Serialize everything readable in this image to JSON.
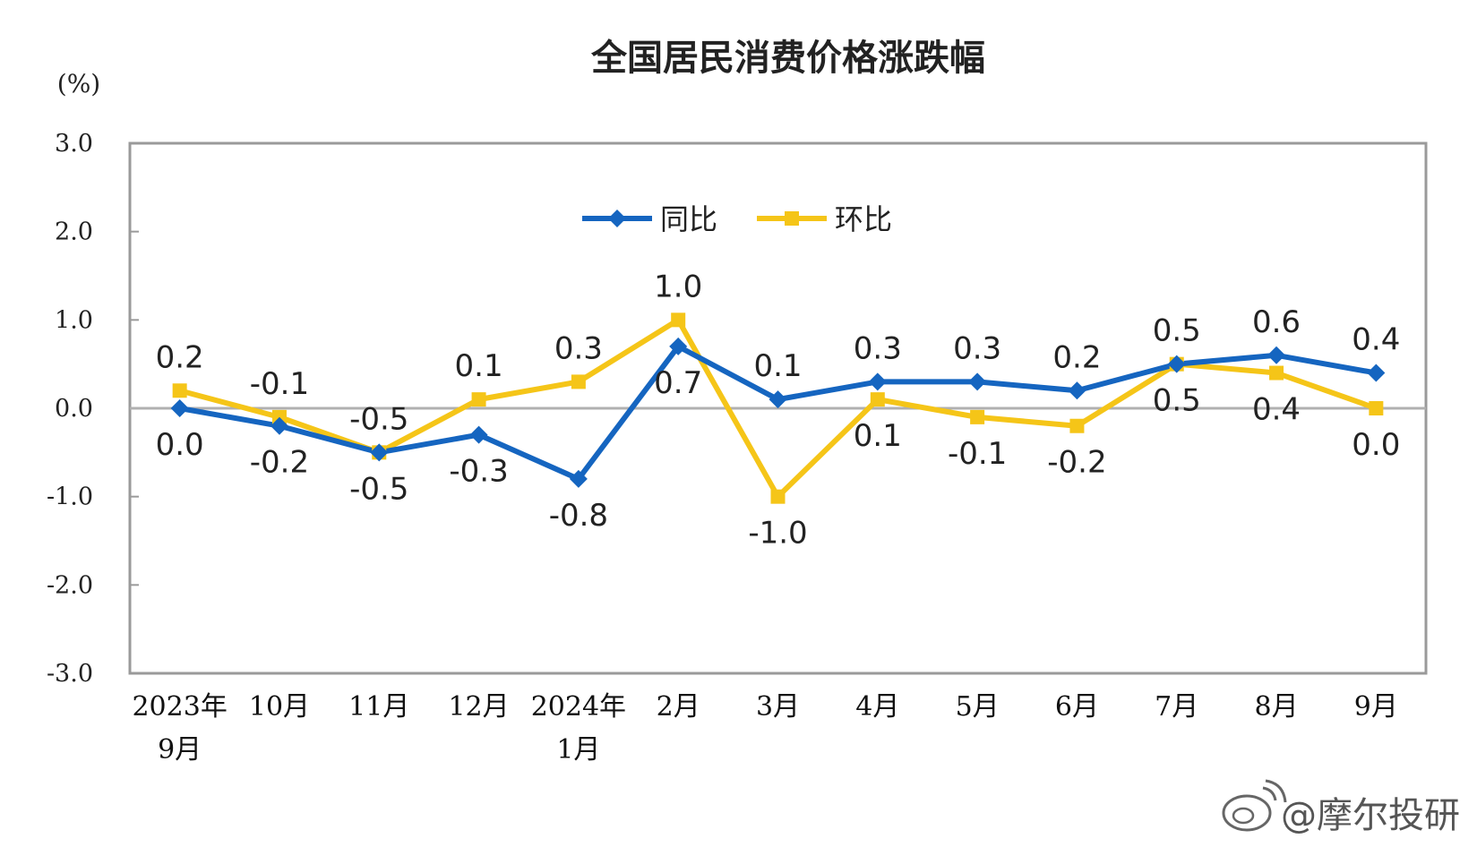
{
  "chart_data": {
    "type": "line",
    "title": "全国居民消费价格涨跌幅",
    "ylabel": "(%)",
    "ylim": [
      -3.0,
      3.0
    ],
    "yticks": [
      "3.0",
      "2.0",
      "1.0",
      "0.0",
      "-1.0",
      "-2.0",
      "-3.0"
    ],
    "categories": [
      [
        "2023年",
        "9月"
      ],
      [
        "10月"
      ],
      [
        "11月"
      ],
      [
        "12月"
      ],
      [
        "2024年",
        "1月"
      ],
      [
        "2月"
      ],
      [
        "3月"
      ],
      [
        "4月"
      ],
      [
        "5月"
      ],
      [
        "6月"
      ],
      [
        "7月"
      ],
      [
        "8月"
      ],
      [
        "9月"
      ]
    ],
    "series": [
      {
        "name": "同比",
        "color": "#1565C0",
        "marker": "diamond",
        "values": [
          0.0,
          -0.2,
          -0.5,
          -0.3,
          -0.8,
          0.7,
          0.1,
          0.3,
          0.3,
          0.2,
          0.5,
          0.6,
          0.4
        ],
        "labels": [
          "0.0",
          "-0.2",
          "-0.5",
          "-0.3",
          "-0.8",
          "0.7",
          "0.1",
          "0.3",
          "0.3",
          "0.2",
          "0.5",
          "0.6",
          "0.4"
        ]
      },
      {
        "name": "环比",
        "color": "#F5C518",
        "marker": "square",
        "values": [
          0.2,
          -0.1,
          -0.5,
          0.1,
          0.3,
          1.0,
          -1.0,
          0.1,
          -0.1,
          -0.2,
          0.5,
          0.4,
          0.0
        ],
        "labels": [
          "0.2",
          "-0.1",
          "-0.5",
          "0.1",
          "0.3",
          "1.0",
          "-1.0",
          "0.1",
          "-0.1",
          "-0.2",
          "0.5",
          "0.4",
          "0.0"
        ]
      }
    ],
    "grid": false,
    "legend": "top-center"
  },
  "watermark": "@摩尔投研"
}
